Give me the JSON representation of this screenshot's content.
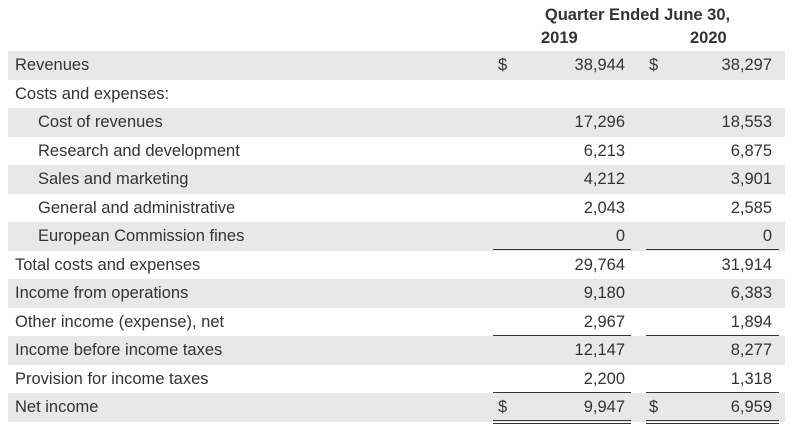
{
  "header": {
    "title": "Quarter Ended June 30,",
    "year_1": "2019",
    "year_2": "2020"
  },
  "rows": [
    {
      "label": "Revenues",
      "dollar_1": "$",
      "v1": "38,944",
      "dollar_2": "$",
      "v2": "38,297"
    },
    {
      "label": "Costs and expenses:",
      "v1": "",
      "v2": ""
    },
    {
      "label": "Cost of revenues",
      "v1": "17,296",
      "v2": "18,553"
    },
    {
      "label": "Research and development",
      "v1": "6,213",
      "v2": "6,875"
    },
    {
      "label": "Sales and marketing",
      "v1": "4,212",
      "v2": "3,901"
    },
    {
      "label": "General and administrative",
      "v1": "2,043",
      "v2": "2,585"
    },
    {
      "label": "European Commission fines",
      "v1": "0",
      "v2": "0"
    },
    {
      "label": "Total costs and expenses",
      "v1": "29,764",
      "v2": "31,914"
    },
    {
      "label": "Income from operations",
      "v1": "9,180",
      "v2": "6,383"
    },
    {
      "label": "Other income (expense), net",
      "v1": "2,967",
      "v2": "1,894"
    },
    {
      "label": "Income before income taxes",
      "v1": "12,147",
      "v2": "8,277"
    },
    {
      "label": "Provision for income taxes",
      "v1": "2,200",
      "v2": "1,318"
    },
    {
      "label": "Net income",
      "dollar_1": "$",
      "v1": "9,947",
      "dollar_2": "$",
      "v2": "6,959"
    }
  ]
}
